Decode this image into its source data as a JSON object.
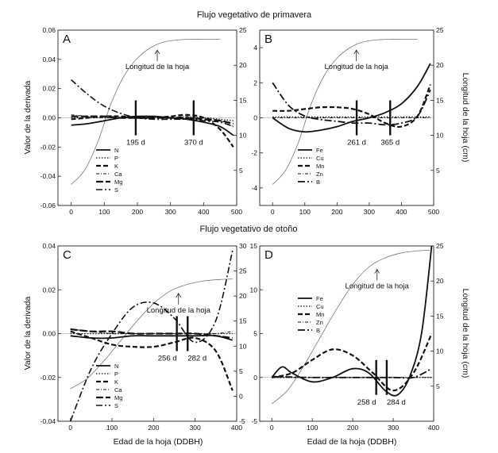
{
  "figure": {
    "title_spring": "Flujo vegetativo de primavera",
    "title_autumn": "Flujo vegetativo de otoño",
    "ylabel_left_top": "Valor de la derivada",
    "ylabel_right_top": "Longitud de la hoja (cm)",
    "ylabel_left_bottom": "Valor de la derivada",
    "ylabel_right_bottom": "Longitud de la hoja (cm)",
    "xlabel_c": "Edad de la hoja (DDBH)",
    "xlabel_d": "Edad de la hoja (DDBH)"
  },
  "chart_data": [
    {
      "id": "A",
      "type": "line",
      "panel_label": "A",
      "title": "Flujo vegetativo de primavera",
      "xlabel": "",
      "ylabel": "Valor de la derivada",
      "y2label": "Longitud de la hoja (cm)",
      "xlim": [
        -40,
        500
      ],
      "ylim": [
        -0.06,
        0.06
      ],
      "y2lim": [
        0,
        25
      ],
      "xticks": [
        "0",
        "100",
        "200",
        "300",
        "400",
        "500"
      ],
      "yticks": [
        "-0.06",
        "-0.04",
        "-0.02",
        "0.00",
        "0.02",
        "0.04",
        "0.06"
      ],
      "y2ticks": [
        "5",
        "10",
        "15",
        "20",
        "25"
      ],
      "leaf_label": "Longitud de la hoja",
      "leaf_length": {
        "x": [
          0,
          40,
          80,
          120,
          160,
          200,
          240,
          280,
          320,
          360,
          400,
          450
        ],
        "y": [
          3,
          5,
          9,
          14.5,
          18.5,
          21,
          22.5,
          23.3,
          23.6,
          23.7,
          23.7,
          23.7
        ]
      },
      "markers": [
        {
          "x": 195,
          "label": "195 d"
        },
        {
          "x": 370,
          "label": "370 d"
        }
      ],
      "series": [
        {
          "name": "N",
          "x": [
            0,
            50,
            100,
            150,
            200,
            250,
            300,
            350,
            400,
            450,
            490
          ],
          "values": [
            -0.005,
            -0.004,
            -0.002,
            0.0,
            0.001,
            0.001,
            0.0,
            -0.001,
            -0.003,
            -0.006,
            -0.012
          ]
        },
        {
          "name": "P",
          "x": [
            0,
            50,
            100,
            150,
            200,
            250,
            300,
            350,
            400,
            450,
            490
          ],
          "values": [
            0.0,
            0.0,
            0.0,
            0.0,
            0.0,
            0.0,
            0.0,
            0.0,
            0.0,
            -0.001,
            -0.002
          ]
        },
        {
          "name": "K",
          "x": [
            0,
            50,
            100,
            150,
            200,
            250,
            300,
            350,
            400,
            450,
            490
          ],
          "values": [
            -0.001,
            0.0,
            0.001,
            0.001,
            0.0,
            0.0,
            0.001,
            0.002,
            0.0,
            -0.008,
            -0.02
          ]
        },
        {
          "name": "Ca",
          "x": [
            0,
            50,
            100,
            150,
            200,
            250,
            300,
            350,
            400,
            450,
            490
          ],
          "values": [
            0.002,
            0.001,
            0.0,
            0.0,
            0.0,
            0.0,
            0.0,
            0.001,
            0.0,
            -0.002,
            -0.006
          ]
        },
        {
          "name": "Mg",
          "x": [
            0,
            50,
            100,
            150,
            200,
            250,
            300,
            350,
            400,
            450,
            490
          ],
          "values": [
            0.001,
            0.001,
            0.001,
            0.0,
            0.0,
            0.0,
            0.0,
            0.0,
            -0.001,
            -0.002,
            -0.004
          ]
        },
        {
          "name": "S",
          "x": [
            0,
            50,
            100,
            150,
            200,
            250,
            300,
            350,
            400,
            450,
            490
          ],
          "values": [
            0.026,
            0.016,
            0.008,
            0.003,
            0.0,
            -0.001,
            -0.001,
            -0.001,
            -0.002,
            -0.003,
            -0.006
          ]
        }
      ]
    },
    {
      "id": "B",
      "type": "line",
      "panel_label": "B",
      "title": "Flujo vegetativo de primavera",
      "xlabel": "",
      "ylabel": "",
      "y2label": "Longitud de la hoja (cm)",
      "xlim": [
        -40,
        500
      ],
      "ylim": [
        -5,
        5
      ],
      "y2lim": [
        0,
        25
      ],
      "xticks": [
        "0",
        "100",
        "200",
        "300",
        "400",
        "500"
      ],
      "yticks": [
        "-4",
        "-2",
        "0",
        "2",
        "4"
      ],
      "y2ticks": [
        "5",
        "10",
        "15",
        "20",
        "25"
      ],
      "leaf_label": "Longitud de la hoja",
      "leaf_length": {
        "x": [
          0,
          40,
          80,
          120,
          160,
          200,
          240,
          280,
          320,
          360,
          400,
          450
        ],
        "y": [
          3,
          5,
          9,
          14.5,
          18.5,
          21,
          22.5,
          23.3,
          23.6,
          23.7,
          23.7,
          23.7
        ]
      },
      "markers": [
        {
          "x": 261,
          "label": "261 d"
        },
        {
          "x": 365,
          "label": "365 d"
        }
      ],
      "series": [
        {
          "name": "Fe",
          "x": [
            0,
            50,
            100,
            150,
            200,
            250,
            300,
            350,
            400,
            450,
            490
          ],
          "values": [
            0.0,
            -0.6,
            -0.8,
            -0.7,
            -0.5,
            -0.2,
            0.0,
            0.3,
            0.8,
            1.8,
            3.1
          ]
        },
        {
          "name": "Cu",
          "x": [
            0,
            50,
            100,
            150,
            200,
            250,
            300,
            350,
            400,
            450,
            490
          ],
          "values": [
            0.05,
            0.05,
            0.05,
            0.05,
            0.05,
            0.05,
            0.05,
            0.05,
            0.05,
            0.05,
            0.05
          ]
        },
        {
          "name": "Mn",
          "x": [
            0,
            50,
            100,
            150,
            200,
            250,
            300,
            350,
            400,
            450,
            490
          ],
          "values": [
            0.4,
            0.4,
            0.5,
            0.6,
            0.6,
            0.5,
            0.2,
            -0.3,
            -0.5,
            0.1,
            1.9
          ]
        },
        {
          "name": "Zn",
          "x": [
            0,
            50,
            100,
            150,
            200,
            250,
            300,
            350,
            400,
            450,
            490
          ],
          "values": [
            0.0,
            0.0,
            0.0,
            0.0,
            0.0,
            0.0,
            0.0,
            0.0,
            0.0,
            0.0,
            0.0
          ]
        },
        {
          "name": "B",
          "x": [
            0,
            50,
            100,
            150,
            200,
            250,
            300,
            350,
            400,
            450,
            490
          ],
          "values": [
            2.0,
            0.7,
            0.1,
            -0.1,
            -0.2,
            -0.3,
            -0.3,
            -0.4,
            -0.3,
            0.1,
            1.6
          ]
        }
      ]
    },
    {
      "id": "C",
      "type": "line",
      "panel_label": "C",
      "title": "Flujo vegetativo de otoño",
      "xlabel": "Edad de la hoja (DDBH)",
      "ylabel": "Valor de la derivada",
      "y2label": "",
      "xlim": [
        -30,
        400
      ],
      "ylim": [
        -0.04,
        0.04
      ],
      "y2lim": [
        -5,
        30
      ],
      "xticks": [
        "0",
        "100",
        "200",
        "300",
        "400"
      ],
      "yticks": [
        "-0.04",
        "-0.02",
        "0.00",
        "0.02",
        "0.04"
      ],
      "y2ticks": [
        "-5",
        "0",
        "5",
        "10",
        "15",
        "20",
        "25",
        "30"
      ],
      "leaf_label": "Longitud de la hoja",
      "leaf_length": {
        "x": [
          0,
          40,
          80,
          120,
          160,
          200,
          240,
          280,
          320,
          360,
          390
        ],
        "y": [
          1.5,
          3.5,
          7,
          11,
          15,
          18.5,
          21,
          22.3,
          23,
          23.3,
          23.4
        ]
      },
      "markers": [
        {
          "x": 256,
          "label": "256 d"
        },
        {
          "x": 282,
          "label": "282 d"
        }
      ],
      "series": [
        {
          "name": "N",
          "x": [
            0,
            50,
            100,
            150,
            200,
            250,
            300,
            350,
            390
          ],
          "values": [
            -0.001,
            -0.002,
            -0.002,
            -0.001,
            -0.001,
            -0.001,
            -0.001,
            -0.001,
            -0.003
          ]
        },
        {
          "name": "P",
          "x": [
            0,
            50,
            100,
            150,
            200,
            250,
            300,
            350,
            390
          ],
          "values": [
            0.0,
            0.0,
            0.0,
            0.0,
            0.0,
            0.0,
            0.0,
            0.0,
            0.0
          ]
        },
        {
          "name": "K",
          "x": [
            0,
            50,
            100,
            150,
            200,
            250,
            300,
            350,
            390
          ],
          "values": [
            0.001,
            -0.002,
            -0.005,
            -0.006,
            -0.006,
            -0.004,
            -0.002,
            -0.008,
            -0.026
          ]
        },
        {
          "name": "Ca",
          "x": [
            0,
            50,
            100,
            150,
            200,
            250,
            300,
            350,
            390
          ],
          "values": [
            0.002,
            0.001,
            0.0,
            0.0,
            0.0,
            0.0,
            0.0,
            0.0,
            0.001
          ]
        },
        {
          "name": "Mg",
          "x": [
            0,
            50,
            100,
            150,
            200,
            250,
            300,
            350,
            390
          ],
          "values": [
            0.002,
            0.001,
            0.001,
            0.0,
            0.0,
            0.0,
            0.0,
            -0.001,
            -0.002
          ]
        },
        {
          "name": "S",
          "x": [
            0,
            50,
            100,
            150,
            200,
            250,
            300,
            350,
            390
          ],
          "values": [
            -0.04,
            -0.016,
            0.0,
            0.012,
            0.014,
            0.007,
            -0.004,
            0.006,
            0.038
          ]
        }
      ]
    },
    {
      "id": "D",
      "type": "line",
      "panel_label": "D",
      "title": "Flujo vegetativo de otoño",
      "xlabel": "Edad de la hoja (DDBH)",
      "ylabel": "",
      "y2label": "Longitud de la hoja (cm)",
      "xlim": [
        -30,
        400
      ],
      "ylim": [
        -5,
        15
      ],
      "y2lim": [
        0,
        25
      ],
      "xticks": [
        "0",
        "100",
        "200",
        "300",
        "400"
      ],
      "yticks": [
        "-5",
        "0",
        "5",
        "10",
        "15"
      ],
      "y2ticks": [
        "5",
        "10",
        "15",
        "20",
        "25"
      ],
      "leaf_label": "Longitud de la hoja",
      "leaf_length": {
        "x": [
          0,
          40,
          80,
          120,
          160,
          200,
          240,
          280,
          320,
          360,
          390
        ],
        "y": [
          2.5,
          4.5,
          8,
          12,
          16,
          19.5,
          22,
          23.3,
          24,
          24.3,
          24.4
        ]
      },
      "markers": [
        {
          "x": 258,
          "label": "258 d"
        },
        {
          "x": 284,
          "label": "284 d"
        }
      ],
      "series": [
        {
          "name": "Fe",
          "x": [
            0,
            25,
            50,
            100,
            150,
            200,
            240,
            280,
            310,
            340,
            370,
            395
          ],
          "values": [
            0.0,
            1.2,
            0.5,
            -0.5,
            0.0,
            1.0,
            0.5,
            -1.5,
            -2.0,
            0.0,
            5.0,
            15.0
          ]
        },
        {
          "name": "Cu",
          "x": [
            0,
            100,
            200,
            300,
            395
          ],
          "values": [
            0.0,
            0.0,
            0.0,
            0.0,
            0.0
          ]
        },
        {
          "name": "Mn",
          "x": [
            0,
            50,
            100,
            150,
            200,
            250,
            300,
            350,
            395
          ],
          "values": [
            0.0,
            0.5,
            2.0,
            3.2,
            2.5,
            0.5,
            -1.5,
            0.5,
            5.0
          ]
        },
        {
          "name": "Zn",
          "x": [
            0,
            100,
            200,
            300,
            395
          ],
          "values": [
            0.0,
            0.0,
            0.0,
            0.0,
            0.0
          ]
        },
        {
          "name": "B",
          "x": [
            0,
            100,
            200,
            300,
            350,
            395
          ],
          "values": [
            0.1,
            0.0,
            0.0,
            0.0,
            0.0,
            1.0
          ]
        }
      ]
    }
  ]
}
